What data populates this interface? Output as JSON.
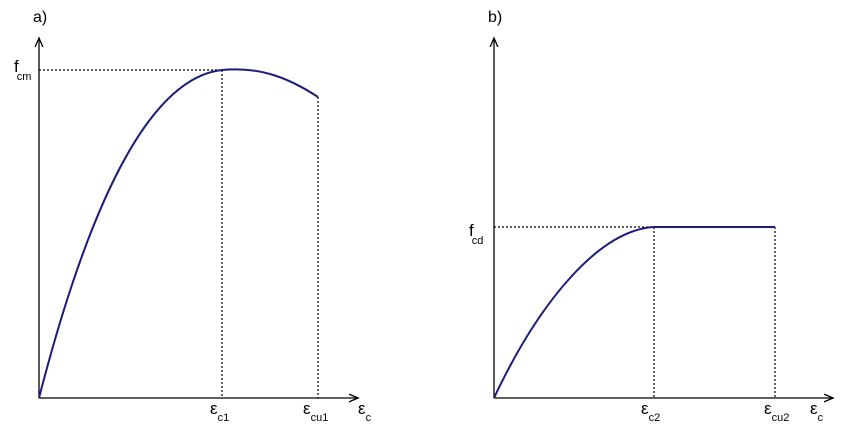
{
  "panels": [
    {
      "label": "a)",
      "y_label": {
        "main": "f",
        "sub": "cm"
      },
      "x_labels": [
        {
          "main": "ε",
          "sub": "c1"
        },
        {
          "main": "ε",
          "sub": "cu1"
        }
      ],
      "axis_label": {
        "main": "ε",
        "sub": "c"
      }
    },
    {
      "label": "b)",
      "y_label": {
        "main": "f",
        "sub": "cd"
      },
      "x_labels": [
        {
          "main": "ε",
          "sub": "c2"
        },
        {
          "main": "ε",
          "sub": "cu2"
        }
      ],
      "axis_label": {
        "main": "ε",
        "sub": "c"
      }
    }
  ]
}
